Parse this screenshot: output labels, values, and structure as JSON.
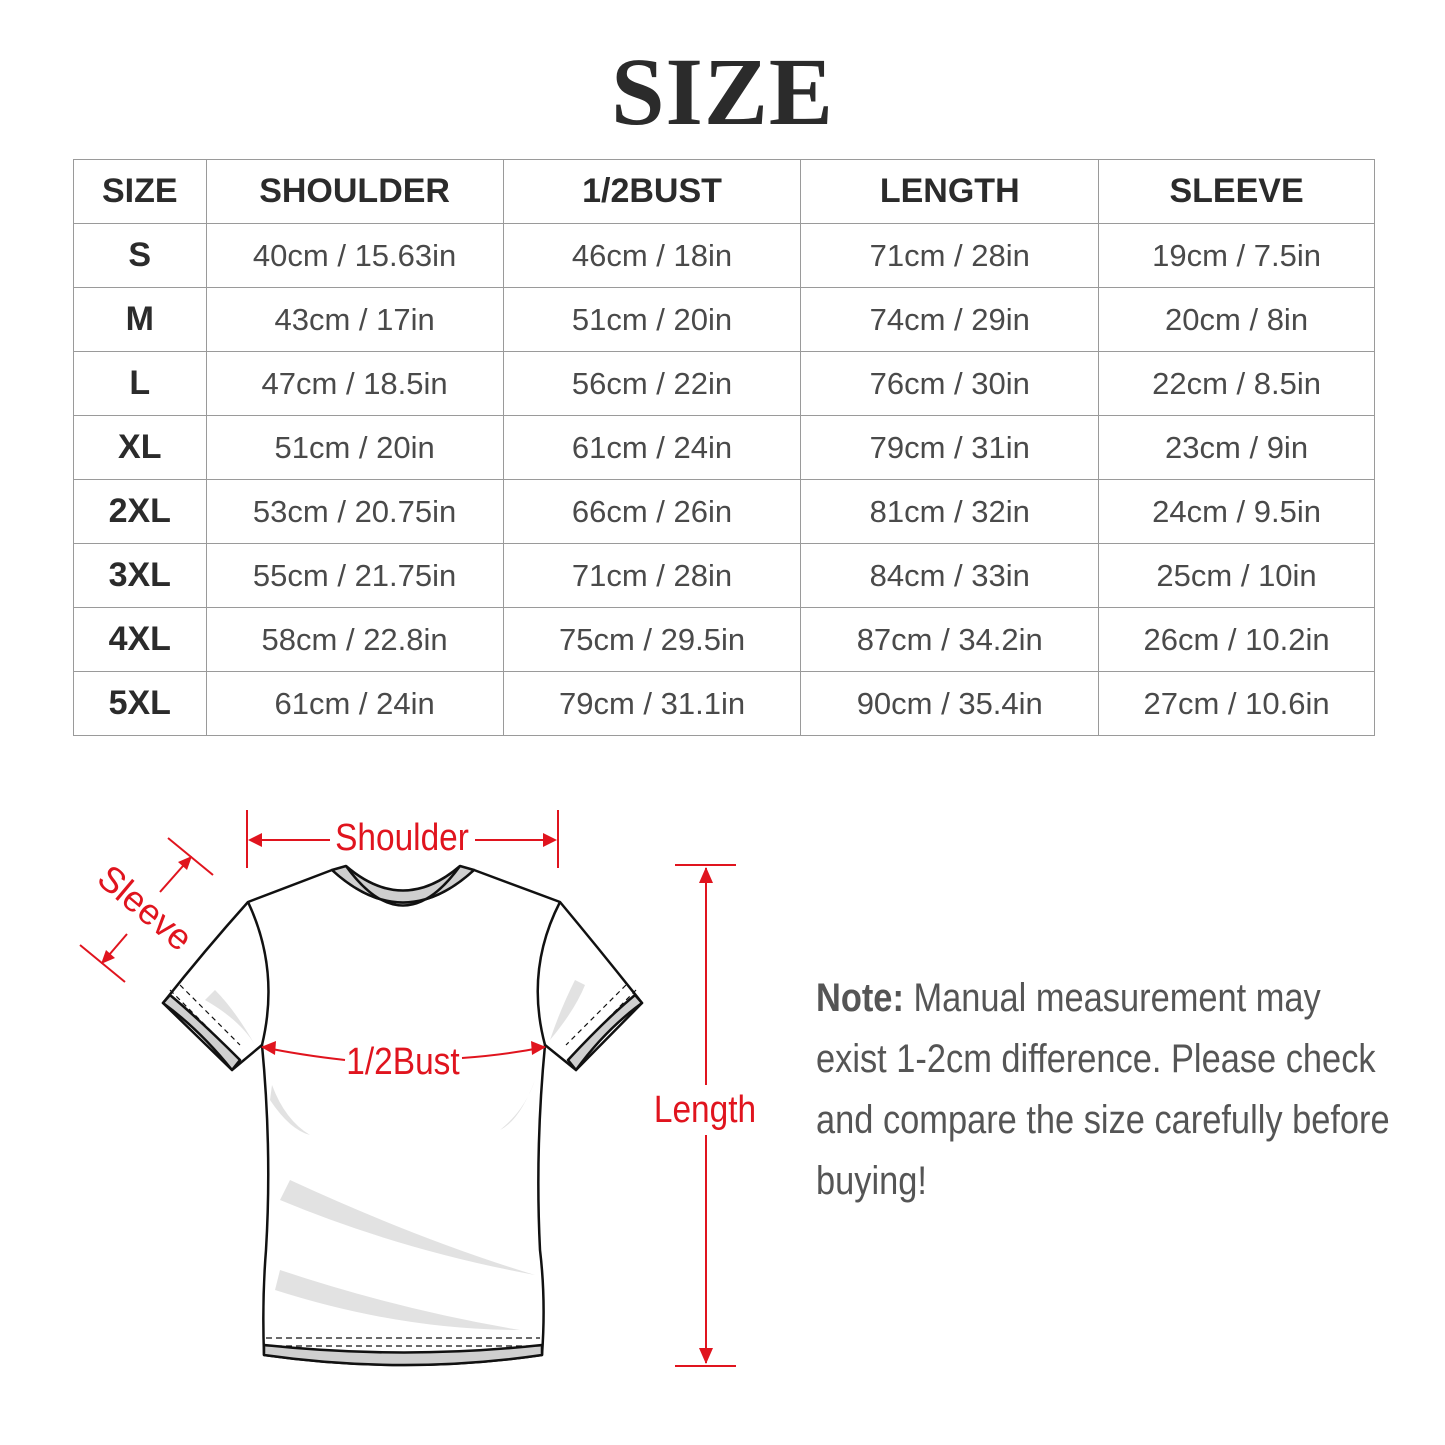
{
  "title": "SIZE",
  "table": {
    "headers": [
      "SIZE",
      "SHOULDER",
      "1/2BUST",
      "LENGTH",
      "SLEEVE"
    ],
    "rows": [
      [
        "S",
        "40cm / 15.63in",
        "46cm / 18in",
        "71cm / 28in",
        "19cm / 7.5in"
      ],
      [
        "M",
        "43cm / 17in",
        "51cm / 20in",
        "74cm / 29in",
        "20cm / 8in"
      ],
      [
        "L",
        "47cm / 18.5in",
        "56cm / 22in",
        "76cm / 30in",
        "22cm / 8.5in"
      ],
      [
        "XL",
        "51cm / 20in",
        "61cm / 24in",
        "79cm / 31in",
        "23cm / 9in"
      ],
      [
        "2XL",
        "53cm / 20.75in",
        "66cm / 26in",
        "81cm / 32in",
        "24cm / 9.5in"
      ],
      [
        "3XL",
        "55cm / 21.75in",
        "71cm / 28in",
        "84cm / 33in",
        "25cm / 10in"
      ],
      [
        "4XL",
        "58cm / 22.8in",
        "75cm / 29.5in",
        "87cm / 34.2in",
        "26cm / 10.2in"
      ],
      [
        "5XL",
        "61cm / 24in",
        "79cm / 31.1in",
        "90cm / 35.4in",
        "27cm / 10.6in"
      ]
    ]
  },
  "diagram": {
    "labels": {
      "shoulder": "Shoulder",
      "sleeve": "Sleeve",
      "bust": "1/2Bust",
      "length": "Length"
    },
    "label_color": "#e0141e",
    "icon": "t-shirt-icon"
  },
  "note": {
    "label": "Note:",
    "text": "Manual measurement may exist 1-2cm difference. Please check and compare the size carefully before buying!"
  }
}
